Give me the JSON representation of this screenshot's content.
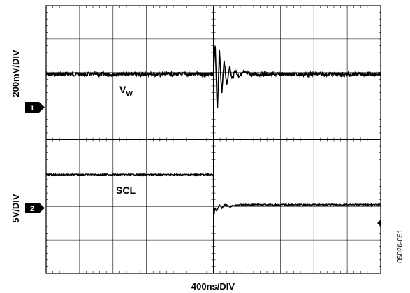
{
  "chart_data": {
    "type": "line",
    "title": "",
    "xlabel": "400ns/DIV",
    "x_divisions": 10,
    "y_divisions": 8,
    "channels": [
      {
        "marker": "1",
        "ylabel": "200mV/DIV",
        "series_name": "V",
        "series_sub": "W",
        "baseline_div": 2.05
      },
      {
        "marker": "2",
        "ylabel": "5V/DIV",
        "series_name": "SCL",
        "baseline_div": 5.05
      }
    ],
    "series": [
      {
        "name": "VW",
        "x_div": [
          0,
          5.0,
          5.05,
          5.12,
          5.18,
          5.25,
          5.32,
          5.4,
          5.48,
          5.56,
          5.65,
          5.75,
          5.9,
          6.1,
          10
        ],
        "y_div": [
          2.05,
          2.05,
          1.1,
          3.2,
          1.3,
          2.7,
          1.6,
          2.4,
          1.8,
          2.2,
          1.95,
          2.1,
          2.0,
          2.05,
          2.05
        ],
        "noise_div": 0.06
      },
      {
        "name": "SCL",
        "x_div": [
          0,
          5.0,
          5.0,
          5.05,
          5.1,
          5.18,
          5.25,
          5.35,
          5.5,
          5.7,
          10
        ],
        "y_div": [
          5.05,
          5.05,
          6.35,
          6.05,
          6.15,
          5.95,
          6.05,
          5.95,
          6.0,
          5.95,
          5.95
        ],
        "noise_div": 0.02
      }
    ],
    "grid": true,
    "colors": {
      "trace": "#000000",
      "grid": "#000000",
      "background": "#ffffff"
    }
  },
  "figure_id": "05026-051"
}
